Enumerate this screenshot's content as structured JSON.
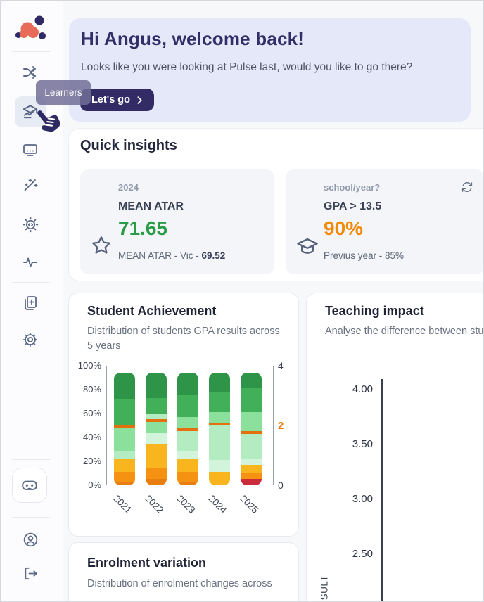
{
  "sidebar": {
    "tooltip": "Learners",
    "icons": {
      "logo": "cluster-logo",
      "nav": [
        "shuffle-icon",
        "learners-icon",
        "presentation-icon",
        "magic-wand-icon",
        "gear-code-icon",
        "pulse-icon",
        "document-add-icon",
        "gear-icon"
      ],
      "footer": [
        "vr-goggles-icon",
        "user-circle-icon",
        "logout-icon"
      ],
      "pointer": "hand-cursor-icon"
    }
  },
  "banner": {
    "title": "Hi Angus, welcome back!",
    "subtitle": "Looks like you were looking at Pulse last, would you like to go there?",
    "cta_label": "Let's go",
    "bg": "#e4e8f8",
    "accent": "#322b66"
  },
  "quick_insights": {
    "title": "Quick insights",
    "cards": [
      {
        "icon": "star-icon",
        "label": "2024",
        "metric": "MEAN ATAR",
        "value": "71.65",
        "value_color": "#2a9c46",
        "footnote_prefix": "MEAN ATAR - Vic - ",
        "footnote_bold": "69.52"
      },
      {
        "icon": "graduation-cap-icon",
        "label": "school/year?",
        "metric": "GPA > 13.5",
        "value": "90%",
        "value_color": "#f18a05",
        "footnote_prefix": "Previus year - 85%",
        "footnote_bold": "",
        "action_icon": "refresh-icon"
      }
    ]
  },
  "student_achievement": {
    "title": "Student Achievement",
    "subtitle": "Distribution of students GPA results across 5 years",
    "chart_data": {
      "type": "bar",
      "stacked": true,
      "categories": [
        "2021",
        "2022",
        "2023",
        "2024",
        "2025"
      ],
      "left_axis": {
        "range": [
          0,
          100
        ],
        "ticks": [
          "0%",
          "20%",
          "40%",
          "60%",
          "80%",
          "100%"
        ]
      },
      "right_axis": {
        "range": [
          0,
          4
        ],
        "ticks": [
          0,
          2,
          4
        ],
        "highlight_tick": 2,
        "highlight_color": "#e87b0e"
      },
      "palette": {
        "darkGreen": "#2e9447",
        "green": "#41b058",
        "lightGreen": "#8be09c",
        "paleGreen": "#b2ecc0",
        "palerGreen": "#d2f4da",
        "amber": "#f8b51d",
        "orange": "#f59212",
        "darkOrange": "#e87e10",
        "red": "#cb2c3b",
        "marker": "#e4700d"
      },
      "bars": [
        {
          "year": "2021",
          "segments": [
            [
              "darkOrange",
              3
            ],
            [
              "orange",
              8
            ],
            [
              "amber",
              11
            ],
            [
              "paleGreen",
              6
            ],
            [
              "lightGreen",
              20
            ],
            [
              "marker",
              2.5
            ],
            [
              "green",
              21.5
            ],
            [
              "darkGreen",
              22
            ]
          ]
        },
        {
          "year": "2022",
          "segments": [
            [
              "darkOrange",
              5
            ],
            [
              "orange",
              9
            ],
            [
              "amber",
              20
            ],
            [
              "palerGreen",
              10
            ],
            [
              "lightGreen",
              9
            ],
            [
              "marker",
              2.5
            ],
            [
              "paleGreen",
              4.5
            ],
            [
              "green",
              13
            ],
            [
              "darkGreen",
              21
            ]
          ]
        },
        {
          "year": "2023",
          "segments": [
            [
              "darkOrange",
              3
            ],
            [
              "orange",
              8
            ],
            [
              "amber",
              11
            ],
            [
              "palerGreen",
              6
            ],
            [
              "paleGreen",
              17
            ],
            [
              "marker",
              2.5
            ],
            [
              "lightGreen",
              9.5
            ],
            [
              "green",
              19
            ],
            [
              "darkGreen",
              18
            ]
          ]
        },
        {
          "year": "2024",
          "segments": [
            [
              "amber",
              11
            ],
            [
              "palerGreen",
              10
            ],
            [
              "paleGreen",
              29
            ],
            [
              "marker",
              2.5
            ],
            [
              "lightGreen",
              8.5
            ],
            [
              "green",
              17
            ],
            [
              "darkGreen",
              16
            ]
          ]
        },
        {
          "year": "2025",
          "segments": [
            [
              "red",
              5
            ],
            [
              "orange",
              5
            ],
            [
              "amber",
              7
            ],
            [
              "palerGreen",
              5
            ],
            [
              "paleGreen",
              21
            ],
            [
              "marker",
              2.5
            ],
            [
              "lightGreen",
              15.5
            ],
            [
              "green",
              20
            ],
            [
              "darkGreen",
              13
            ]
          ]
        }
      ]
    }
  },
  "teaching_impact": {
    "title": "Teaching impact",
    "subtitle": "Analyse the difference between stude",
    "chart_data": {
      "type": "line",
      "yticks": [
        "4.00",
        "3.50",
        "3.00",
        "2.50"
      ],
      "ylabel": "RESULT",
      "series": []
    }
  },
  "enrolment_variation": {
    "title": "Enrolment variation",
    "subtitle": "Distribution of enrolment changes across"
  }
}
